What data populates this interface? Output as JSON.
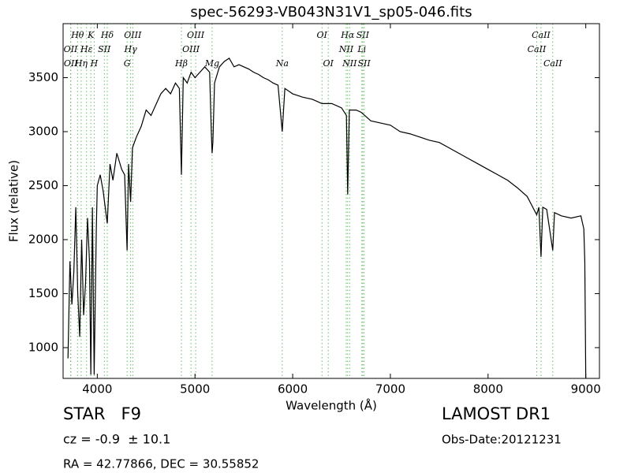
{
  "chart_data": {
    "type": "line",
    "title": "spec-56293-VB043N31V1_sp05-046.fits",
    "x_label": "Wavelength (Å)",
    "y_label": "Flux (relative)",
    "x": [
      3700,
      3720,
      3740,
      3760,
      3780,
      3800,
      3820,
      3840,
      3860,
      3880,
      3900,
      3920,
      3934,
      3950,
      3968,
      3990,
      4000,
      4030,
      4060,
      4102,
      4130,
      4160,
      4200,
      4250,
      4280,
      4305,
      4320,
      4341,
      4360,
      4400,
      4450,
      4500,
      4550,
      4600,
      4650,
      4700,
      4750,
      4800,
      4840,
      4861,
      4880,
      4920,
      4960,
      5000,
      5050,
      5100,
      5150,
      5167,
      5175,
      5183,
      5200,
      5250,
      5300,
      5350,
      5400,
      5450,
      5500,
      5550,
      5600,
      5650,
      5700,
      5750,
      5800,
      5850,
      5893,
      5920,
      6000,
      6100,
      6200,
      6300,
      6400,
      6500,
      6550,
      6563,
      6580,
      6650,
      6700,
      6800,
      6900,
      7000,
      7100,
      7200,
      7300,
      7400,
      7500,
      7600,
      7700,
      7800,
      7900,
      8000,
      8100,
      8200,
      8300,
      8400,
      8498,
      8520,
      8542,
      8560,
      8600,
      8662,
      8680,
      8750,
      8850,
      8950,
      8980,
      8990,
      9000
    ],
    "values": [
      900,
      1800,
      1400,
      1700,
      2300,
      1500,
      1100,
      2000,
      1300,
      1600,
      2200,
      1800,
      750,
      2300,
      750,
      2100,
      2500,
      2600,
      2450,
      2150,
      2700,
      2550,
      2800,
      2650,
      2600,
      1900,
      2700,
      2350,
      2850,
      2950,
      3050,
      3200,
      3150,
      3250,
      3350,
      3400,
      3350,
      3450,
      3400,
      2600,
      3500,
      3450,
      3550,
      3500,
      3550,
      3600,
      3550,
      3000,
      2800,
      2900,
      3450,
      3600,
      3650,
      3680,
      3600,
      3620,
      3600,
      3580,
      3550,
      3530,
      3500,
      3480,
      3450,
      3430,
      3000,
      3400,
      3350,
      3320,
      3300,
      3260,
      3260,
      3220,
      3150,
      2420,
      3200,
      3200,
      3180,
      3100,
      3080,
      3060,
      3000,
      2980,
      2950,
      2920,
      2900,
      2850,
      2800,
      2750,
      2700,
      2650,
      2600,
      2550,
      2480,
      2400,
      2230,
      2300,
      1840,
      2300,
      2280,
      1900,
      2250,
      2220,
      2200,
      2220,
      2100,
      1800,
      720
    ],
    "color": "#000000",
    "line_color": "#66bb66",
    "xlim": [
      3650,
      9140
    ],
    "ylim": [
      715,
      4000
    ],
    "xticks": [
      4000,
      5000,
      6000,
      7000,
      8000,
      9000
    ],
    "yticks": [
      1000,
      1500,
      2000,
      2500,
      3000,
      3500
    ],
    "grid": false,
    "annotations": [
      [
        {
          "label": "Hθ",
          "x": 3798
        },
        {
          "label": "K",
          "x": 3934
        },
        {
          "label": "Hδ",
          "x": 4102
        },
        {
          "label": "OIII",
          "x": 4363
        },
        {
          "label": "OIII",
          "x": 5007
        },
        {
          "label": "OI",
          "x": 6300
        },
        {
          "label": "Hα",
          "x": 6563
        },
        {
          "label": "SII",
          "x": 6717
        },
        {
          "label": "CaII",
          "x": 8542
        }
      ],
      [
        {
          "label": "OII",
          "x": 3727
        },
        {
          "label": "Hε",
          "x": 3890
        },
        {
          "label": "SII",
          "x": 4072
        },
        {
          "label": "Hγ",
          "x": 4341
        },
        {
          "label": "OIII",
          "x": 4959
        },
        {
          "label": "NII",
          "x": 6548
        },
        {
          "label": "Li",
          "x": 6708
        },
        {
          "label": "CaII",
          "x": 8498
        }
      ],
      [
        {
          "label": "OII",
          "x": 3729
        },
        {
          "label": "Hη",
          "x": 3835
        },
        {
          "label": "H",
          "x": 3968
        },
        {
          "label": "G",
          "x": 4305
        },
        {
          "label": "Hβ",
          "x": 4861
        },
        {
          "label": "Mg",
          "x": 5175
        },
        {
          "label": "Na",
          "x": 5893
        },
        {
          "label": "OI",
          "x": 6364
        },
        {
          "label": "NII",
          "x": 6583
        },
        {
          "label": "SII",
          "x": 6731
        },
        {
          "label": "CaII",
          "x": 8662
        }
      ]
    ],
    "info": {
      "object": "STAR   F9",
      "cz": "cz = -0.9  ± 10.1",
      "coords": "RA = 42.77866, DEC = 30.55852",
      "survey": "LAMOST DR1",
      "date": "Obs-Date:20121231"
    }
  }
}
